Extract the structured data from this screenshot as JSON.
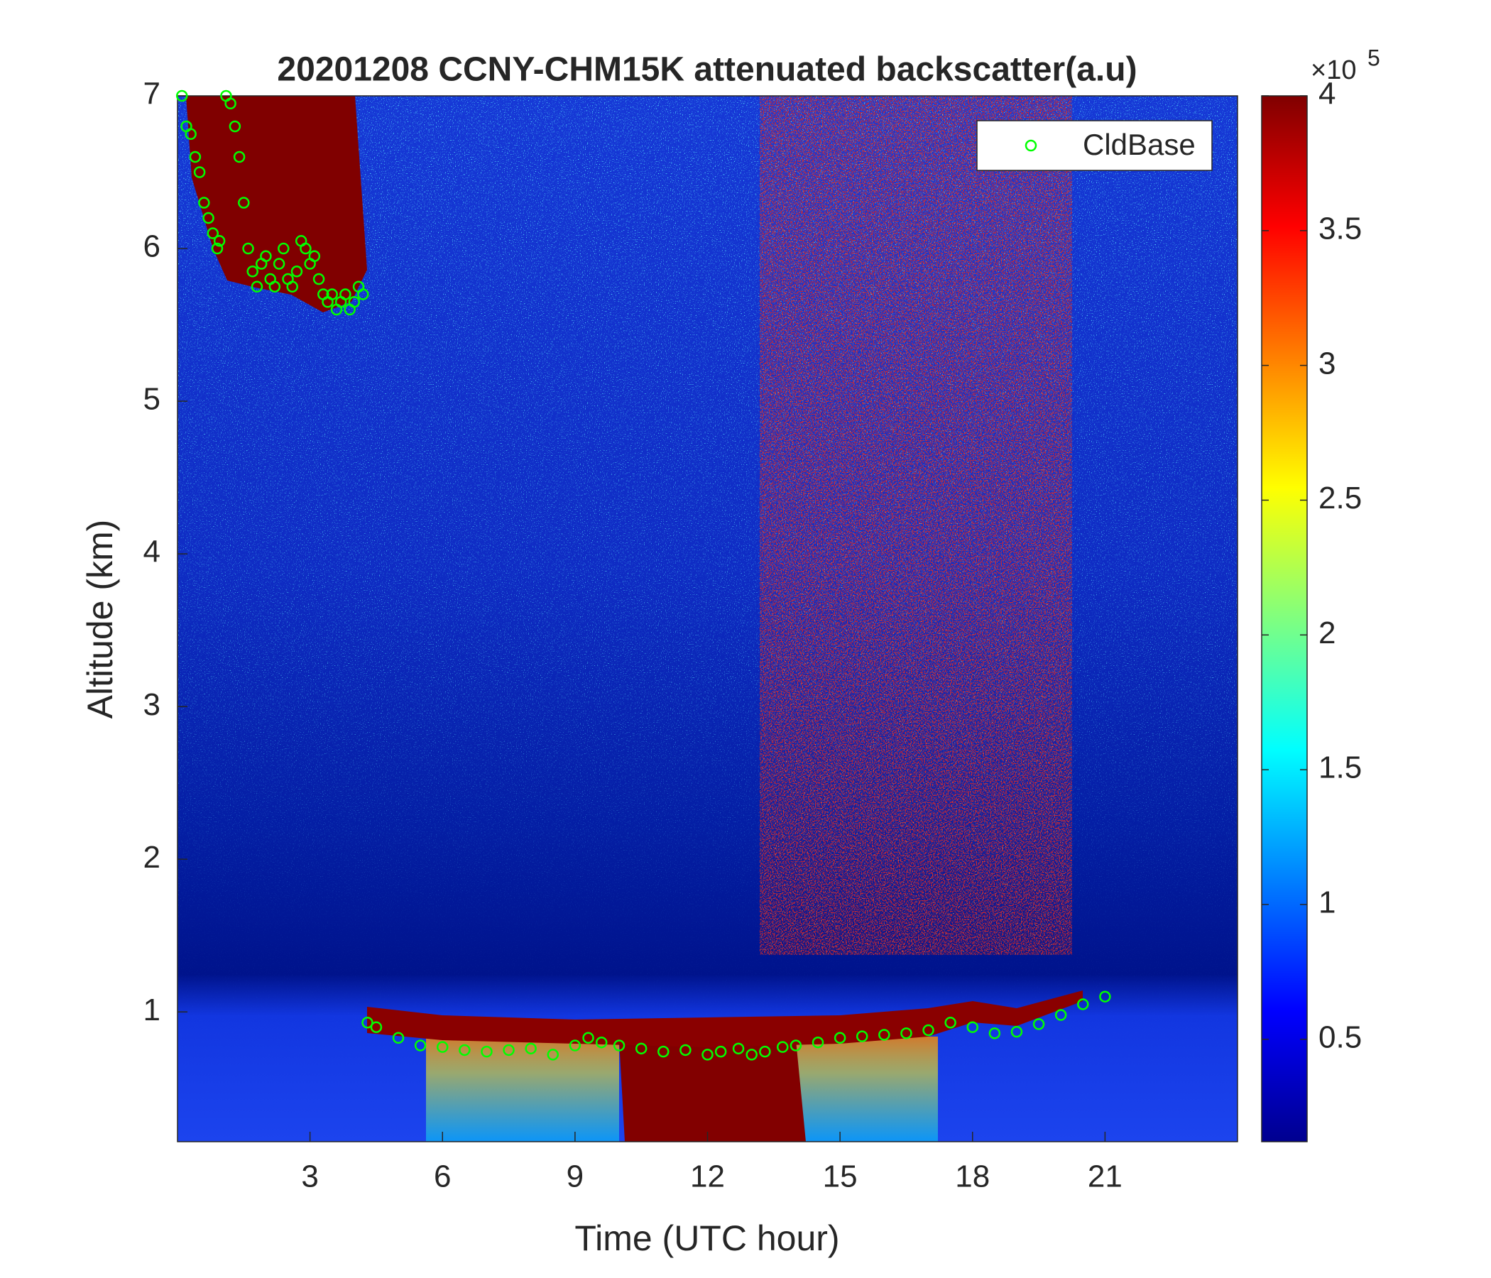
{
  "chart_data": {
    "type": "scatter",
    "title": "20201208 CCNY-CHM15K attenuated backscatter(a.u)",
    "xlabel": "Time (UTC hour)",
    "ylabel": "Altitude (km)",
    "xlim": [
      0,
      24
    ],
    "xticks": [
      3,
      6,
      9,
      12,
      15,
      18,
      21
    ],
    "ylim": [
      0.15,
      7
    ],
    "yticks": [
      1,
      2,
      3,
      4,
      5,
      6,
      7
    ],
    "legend": "northeast",
    "series": [
      {
        "name": "CldBase",
        "color": "#00ff00",
        "x": [
          0.1,
          0.2,
          0.3,
          0.4,
          0.5,
          0.6,
          0.7,
          0.8,
          0.9,
          0.95,
          1.1,
          1.2,
          1.3,
          1.4,
          1.5,
          1.6,
          1.7,
          1.8,
          1.9,
          2.0,
          2.1,
          2.2,
          2.3,
          2.4,
          2.5,
          2.6,
          2.7,
          2.8,
          2.9,
          3.0,
          3.1,
          3.2,
          3.3,
          3.4,
          3.5,
          3.6,
          3.7,
          3.8,
          3.9,
          4.0,
          4.1,
          4.2,
          4.3,
          4.5,
          5.0,
          5.5,
          6.0,
          6.5,
          7.0,
          7.5,
          8.0,
          8.5,
          9.0,
          9.3,
          9.6,
          10.0,
          10.5,
          11.0,
          11.5,
          12.0,
          12.3,
          12.7,
          13.0,
          13.3,
          13.7,
          14.0,
          14.5,
          15.0,
          15.5,
          16.0,
          16.5,
          17.0,
          17.5,
          18.0,
          18.5,
          19.0,
          19.5,
          20.0,
          20.5,
          21.0
        ],
        "y": [
          7.0,
          6.8,
          6.75,
          6.6,
          6.5,
          6.3,
          6.2,
          6.1,
          6.0,
          6.05,
          7.0,
          6.95,
          6.8,
          6.6,
          6.3,
          6.0,
          5.85,
          5.75,
          5.9,
          5.95,
          5.8,
          5.75,
          5.9,
          6.0,
          5.8,
          5.75,
          5.85,
          6.05,
          6.0,
          5.9,
          5.95,
          5.8,
          5.7,
          5.65,
          5.7,
          5.6,
          5.65,
          5.7,
          5.6,
          5.65,
          5.75,
          5.7,
          0.93,
          0.9,
          0.83,
          0.78,
          0.77,
          0.75,
          0.74,
          0.75,
          0.76,
          0.72,
          0.78,
          0.83,
          0.8,
          0.78,
          0.76,
          0.74,
          0.75,
          0.72,
          0.74,
          0.76,
          0.72,
          0.74,
          0.77,
          0.78,
          0.8,
          0.83,
          0.84,
          0.85,
          0.86,
          0.88,
          0.93,
          0.9,
          0.86,
          0.87,
          0.92,
          0.98,
          1.05,
          1.1
        ]
      }
    ],
    "colorbar": {
      "colormap": "jet",
      "clim": [
        0.12,
        4
      ],
      "ticks": [
        0.5,
        1,
        1.5,
        2,
        2.5,
        3,
        3.5,
        4
      ],
      "multiplier_base": "×10",
      "multiplier_exponent": "5"
    }
  }
}
